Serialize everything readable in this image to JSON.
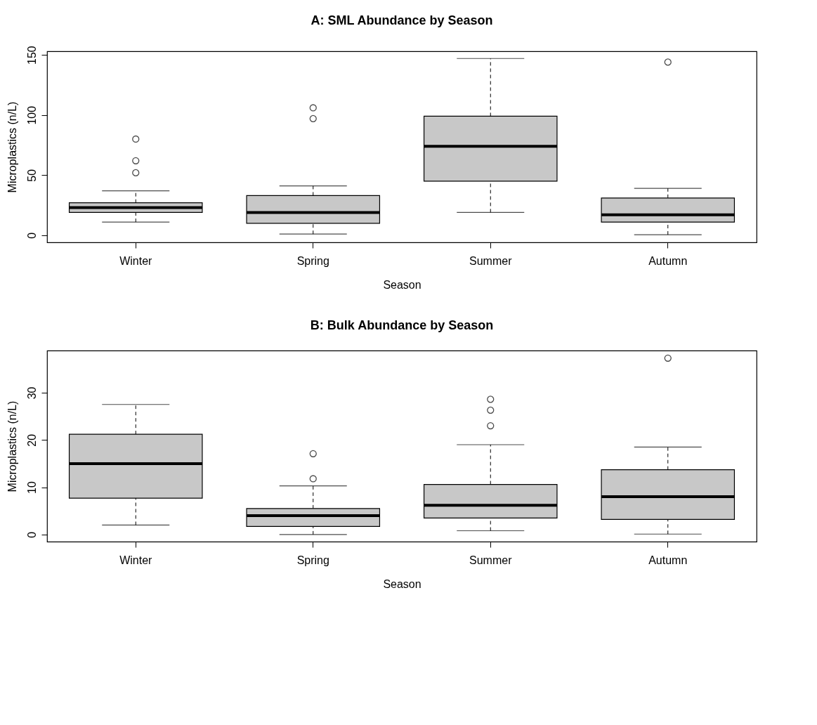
{
  "chart_data": [
    {
      "type": "box",
      "title": "A: SML Abundance by Season",
      "xlabel": "Season",
      "ylabel": "Microplastics (n/L)",
      "categories": [
        "Winter",
        "Spring",
        "Summer",
        "Autumn"
      ],
      "ylim": [
        -5.9,
        153
      ],
      "yticks": [
        0,
        50,
        100,
        150
      ],
      "grid": false,
      "series": [
        {
          "color": "#c8c8c8",
          "boxes": [
            {
              "low": 11,
              "q1": 19,
              "median": 23,
              "q3": 27,
              "high": 37,
              "outliers": [
                52,
                62,
                80
              ]
            },
            {
              "low": 1,
              "q1": 10,
              "median": 19,
              "q3": 33,
              "high": 41,
              "outliers": [
                97,
                106
              ]
            },
            {
              "low": 19,
              "q1": 45,
              "median": 74,
              "q3": 99,
              "high": 147
            },
            {
              "low": 0.5,
              "q1": 11,
              "median": 17,
              "q3": 31,
              "high": 39,
              "outliers": [
                144
              ]
            }
          ]
        }
      ]
    },
    {
      "type": "box",
      "title": "B: Bulk Abundance by Season",
      "xlabel": "Season",
      "ylabel": "Microplastics (n/L)",
      "categories": [
        "Winter",
        "Spring",
        "Summer",
        "Autumn"
      ],
      "ylim": [
        -1.5,
        38.9
      ],
      "yticks": [
        0,
        10,
        20,
        30
      ],
      "grid": false,
      "series": [
        {
          "color": "#c8c8c8",
          "boxes": [
            {
              "low": 2,
              "q1": 7.7,
              "median": 15,
              "q3": 21.2,
              "high": 27.5
            },
            {
              "low": 0,
              "q1": 1.7,
              "median": 4,
              "q3": 5.5,
              "high": 10.3,
              "outliers": [
                11.8,
                17.1
              ]
            },
            {
              "low": 0.8,
              "q1": 3.5,
              "median": 6.2,
              "q3": 10.6,
              "high": 19,
              "outliers": [
                23,
                26.3,
                28.6
              ]
            },
            {
              "low": 0.1,
              "q1": 3.2,
              "median": 8,
              "q3": 13.7,
              "high": 18.5,
              "outliers": [
                37.3
              ]
            }
          ]
        }
      ]
    }
  ]
}
